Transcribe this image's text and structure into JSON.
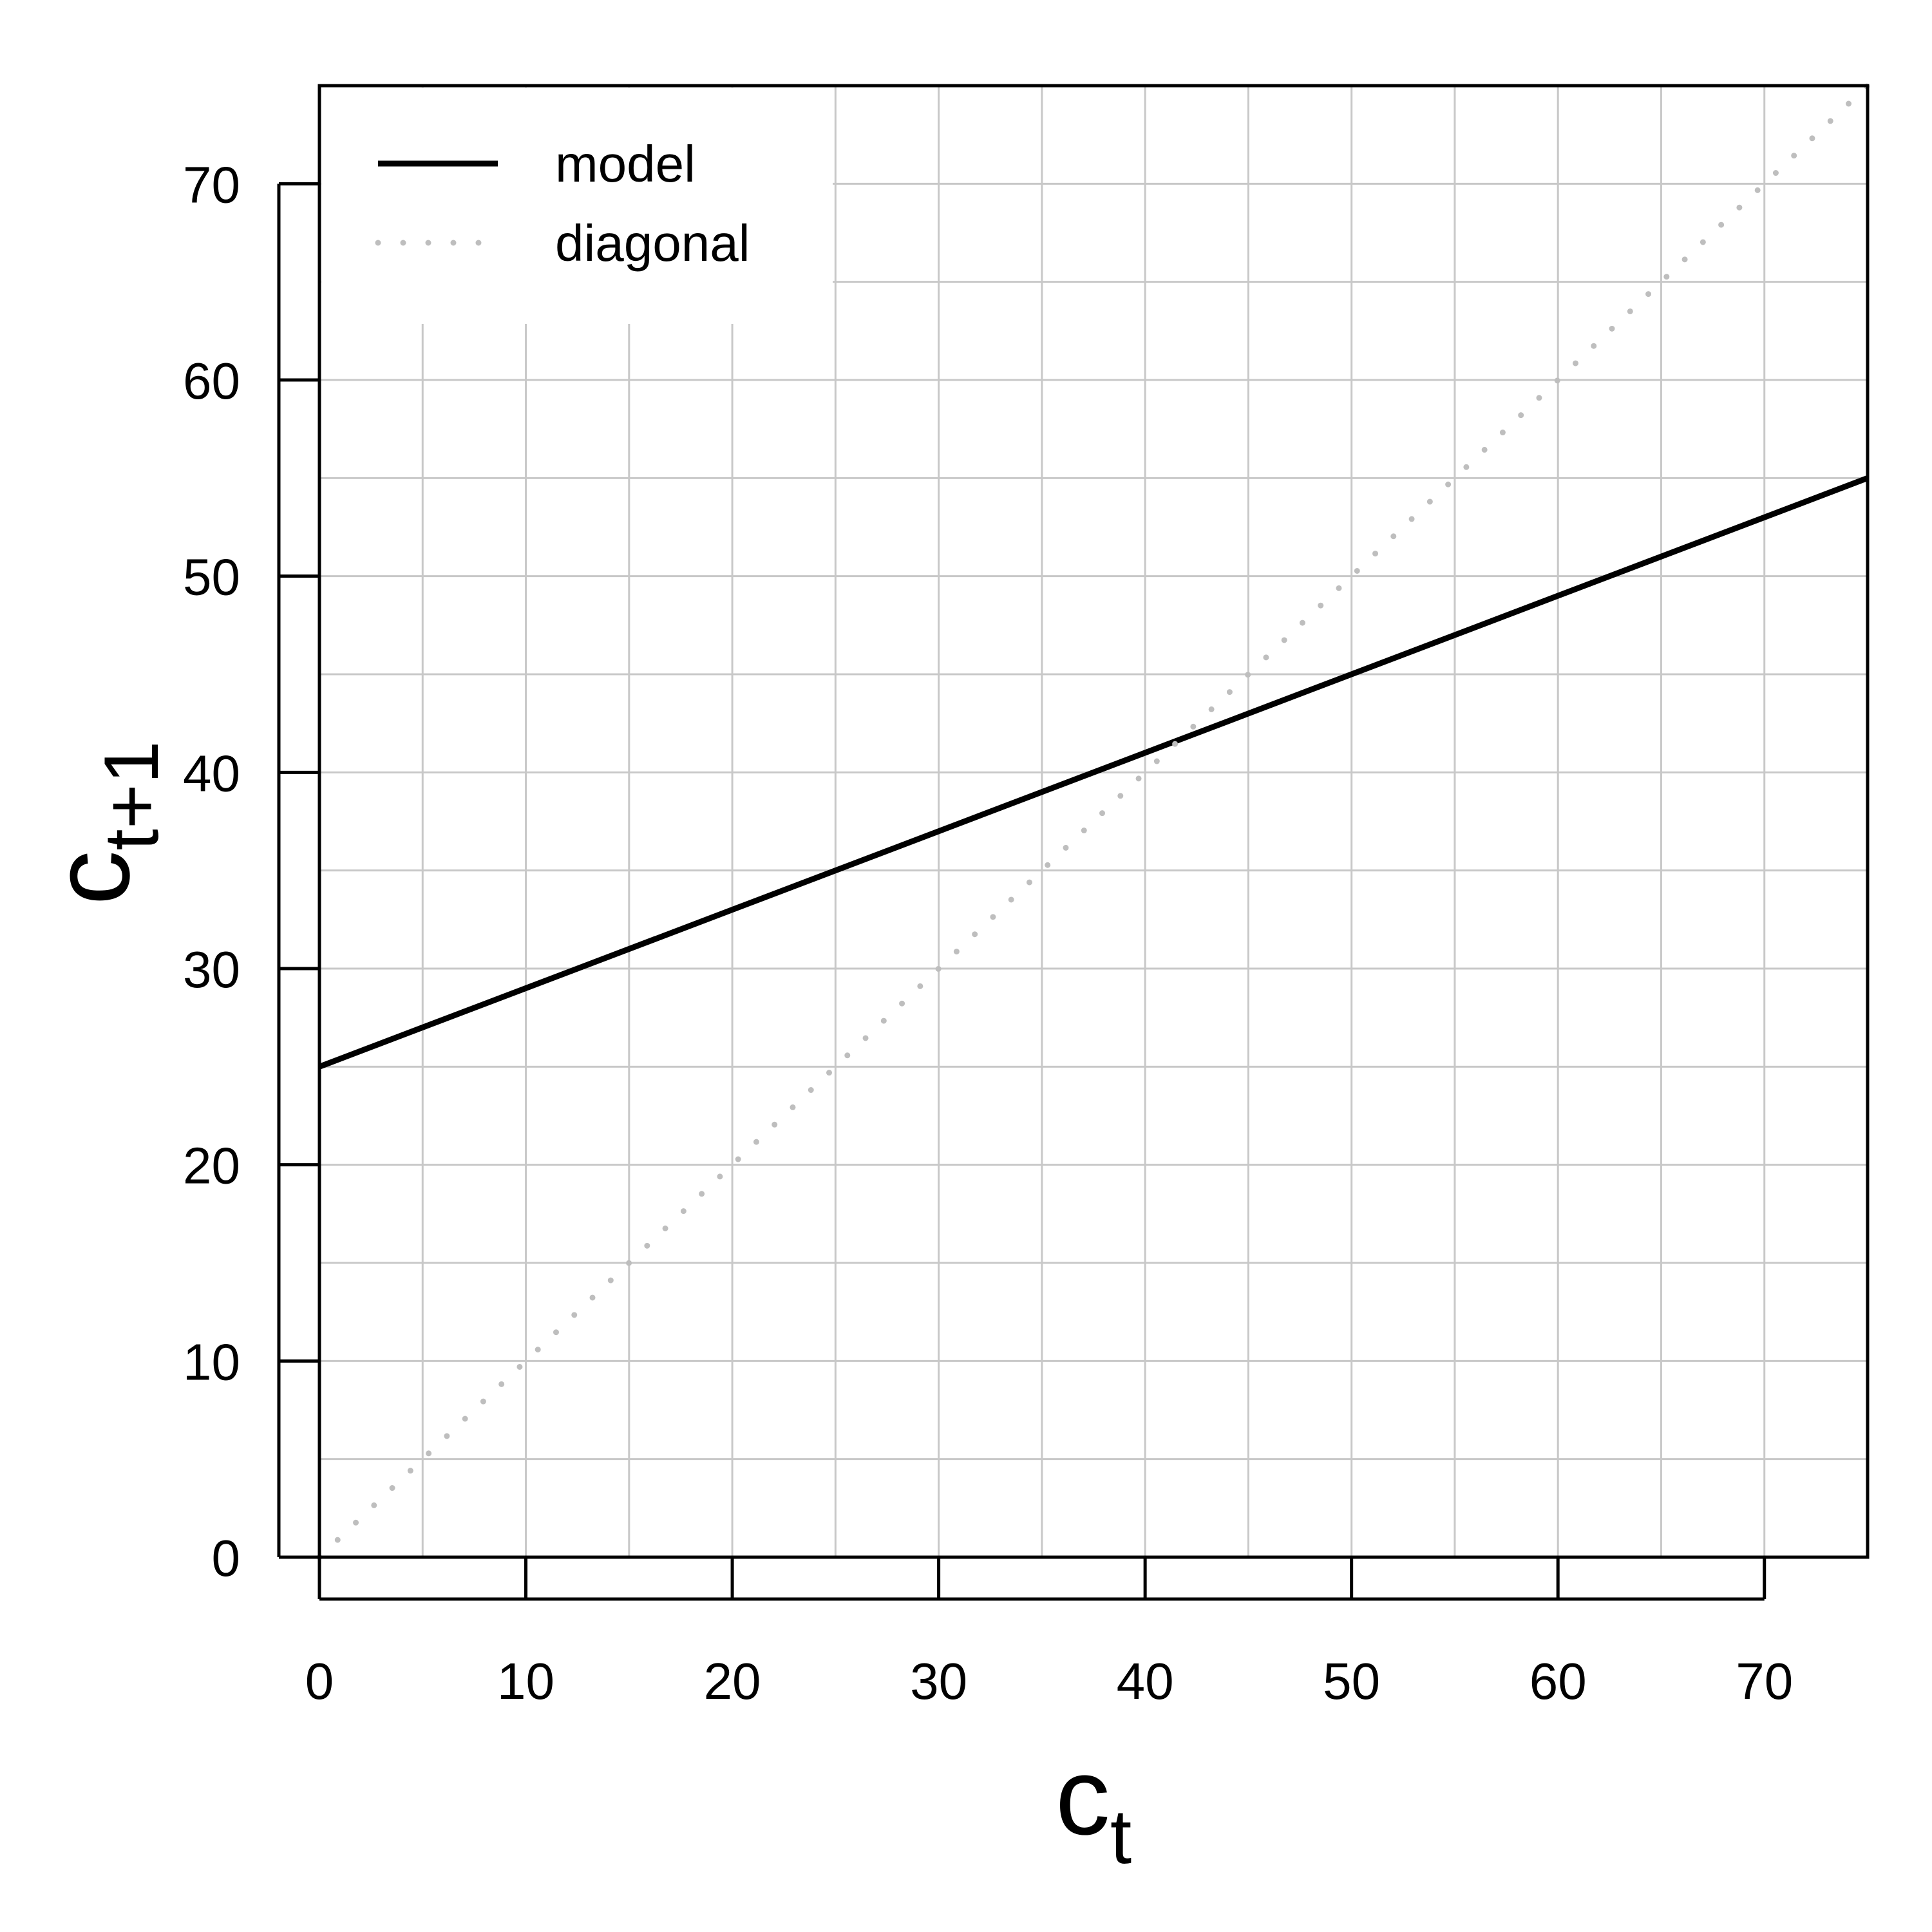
{
  "chart_data": {
    "type": "line",
    "xlabel": {
      "main": "c",
      "sub": "t"
    },
    "ylabel": {
      "main": "c",
      "sub": "t+1"
    },
    "xlim": [
      0,
      75
    ],
    "ylim": [
      0,
      75
    ],
    "x_ticks": [
      0,
      10,
      20,
      30,
      40,
      50,
      60,
      70
    ],
    "y_ticks": [
      0,
      10,
      20,
      30,
      40,
      50,
      60,
      70
    ],
    "grid": true,
    "grid_step": 5,
    "legend_position": "top-left",
    "series": [
      {
        "name": "model",
        "style": "solid",
        "color": "#000000",
        "x": [
          0,
          75
        ],
        "y": [
          25,
          55
        ]
      },
      {
        "name": "diagonal",
        "style": "dotted",
        "color": "#bebebe",
        "x": [
          0,
          75
        ],
        "y": [
          0,
          75
        ]
      }
    ]
  }
}
